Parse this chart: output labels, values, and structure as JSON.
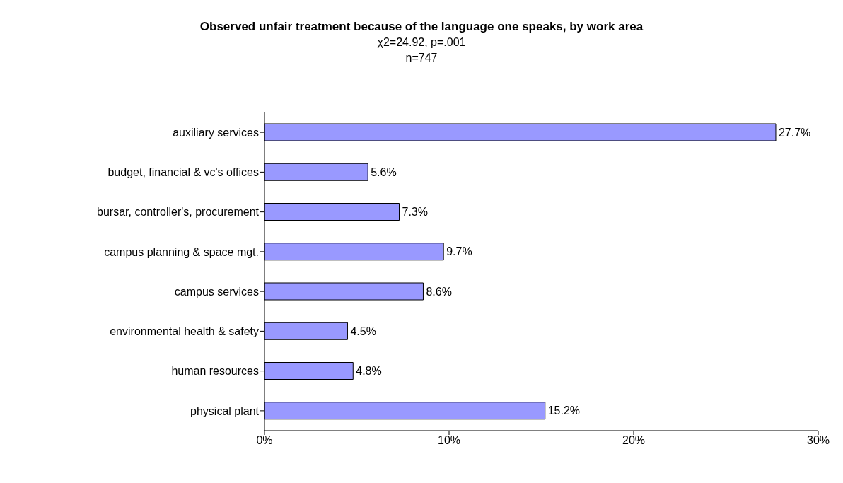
{
  "chart_data": {
    "type": "bar",
    "orientation": "horizontal",
    "title": "Observed unfair treatment because of the language one speaks, by work area",
    "subtitle": "χ2=24.92, p=.001",
    "annotations": [
      "n=747"
    ],
    "categories": [
      "auxiliary services",
      "budget, financial & vc's offices",
      "bursar, controller's, procurement",
      "campus planning & space mgt.",
      "campus services",
      "environmental health & safety",
      "human resources",
      "physical plant"
    ],
    "values": [
      27.7,
      5.6,
      7.3,
      9.7,
      8.6,
      4.5,
      4.8,
      15.2
    ],
    "value_labels": [
      "27.7%",
      "5.6%",
      "7.3%",
      "9.7%",
      "8.6%",
      "4.5%",
      "4.8%",
      "15.2%"
    ],
    "color": "#9999ff",
    "xlim": [
      0,
      30
    ],
    "xticks": [
      {
        "value": 0,
        "label": "0%"
      },
      {
        "value": 10,
        "label": "10%"
      },
      {
        "value": 20,
        "label": "20%"
      },
      {
        "value": 30,
        "label": "30%"
      }
    ],
    "grid": false,
    "legend": false
  }
}
